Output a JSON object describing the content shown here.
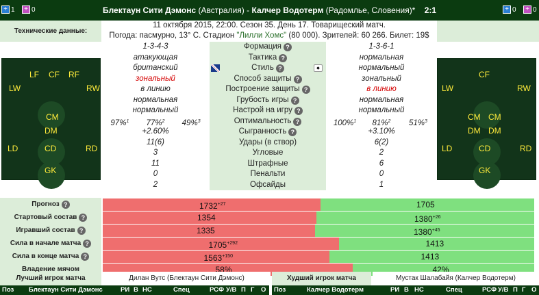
{
  "header": {
    "left_icons": [
      {
        "icon": "substitution-icon",
        "count": "1"
      },
      {
        "icon": "injury-icon",
        "count": "0"
      }
    ],
    "right_icons": [
      {
        "icon": "substitution-icon",
        "count": "0"
      },
      {
        "icon": "injury-icon",
        "count": "0"
      }
    ],
    "home_team": "Блектаун Сити Дэмонс",
    "home_country": "(Австралия)",
    "separator": " - ",
    "away_team": "Калчер Водотерм",
    "away_country": "(Радомлье, Словения)*",
    "score": "2:1"
  },
  "tech": {
    "label": "Технические данные:",
    "line1": "11 октября 2015, 22:00. Сезон 35. День 17. Товарищеский матч.",
    "line2_prefix": "Погода: пасмурно, 13° С. Стадион ",
    "stadium": "\"Лилли Хомс\"",
    "line2_suffix": " (80 000). Зрителей: 60 266. Билет: 19$"
  },
  "home_positions": [
    "LF",
    "CF",
    "RF",
    "LW",
    "RW",
    "CM",
    "DM",
    "LD",
    "CD",
    "RD",
    "GK"
  ],
  "away_positions": [
    "CF",
    "LW",
    "RW",
    "CM",
    "CM",
    "DM",
    "DM",
    "LD",
    "CD",
    "RD",
    "GK"
  ],
  "stats": [
    {
      "label": "Формация",
      "home": "1-3-4-3",
      "away": "1-3-6-1",
      "help": true
    },
    {
      "label": "Тактика",
      "home": "атакующая",
      "away": "нормальная",
      "help": true
    },
    {
      "label": "Стиль",
      "home": "британский",
      "away": "нормальный",
      "help": true
    },
    {
      "label": "Способ защиты",
      "home": "зональный",
      "away": "зональный",
      "help": true
    },
    {
      "label": "Построение защиты",
      "home": "в линию",
      "away": "в линию",
      "help": true
    },
    {
      "label": "Грубость игры",
      "home": "нормальная",
      "away": "нормальная",
      "help": true
    },
    {
      "label": "Настрой на игру",
      "home": "нормальный",
      "away": "нормальный",
      "help": true
    },
    {
      "label": "Оптимальность",
      "home": "",
      "away": "",
      "help": true
    },
    {
      "label": "Сыгранность",
      "home": "+2.60%",
      "away": "+3.10%",
      "help": true
    },
    {
      "label": "Удары (в створ)",
      "home": "11(6)",
      "away": "6(2)",
      "help": false
    },
    {
      "label": "Угловые",
      "home": "3",
      "away": "2",
      "help": false
    },
    {
      "label": "Штрафные",
      "home": "11",
      "away": "6",
      "help": false
    },
    {
      "label": "Пенальти",
      "home": "0",
      "away": "0",
      "help": false
    },
    {
      "label": "Офсайды",
      "home": "2",
      "away": "1",
      "help": false
    }
  ],
  "optimality": {
    "home": [
      {
        "v": "97%",
        "s": "1"
      },
      {
        "v": "77%",
        "s": "2"
      },
      {
        "v": "49%",
        "s": "3"
      }
    ],
    "away": [
      {
        "v": "100%",
        "s": "1"
      },
      {
        "v": "81%",
        "s": "2"
      },
      {
        "v": "51%",
        "s": "3"
      }
    ]
  },
  "bars": [
    {
      "label": "Прогноз",
      "home": "1732",
      "home_sup": "+27",
      "away": "1705",
      "away_sup": "",
      "home_fraction": 0.504
    },
    {
      "label": "Стартовый состав",
      "home": "1354",
      "home_sup": "",
      "away": "1380",
      "away_sup": "+26",
      "home_fraction": 0.496
    },
    {
      "label": "Игравший состав",
      "home": "1335",
      "home_sup": "",
      "away": "1380",
      "away_sup": "+45",
      "home_fraction": 0.492
    },
    {
      "label": "Сила в начале матча",
      "home": "1705",
      "home_sup": "+292",
      "away": "1413",
      "away_sup": "",
      "home_fraction": 0.547
    },
    {
      "label": "Сила в конце матча",
      "home": "1563",
      "home_sup": "+150",
      "away": "1413",
      "away_sup": "",
      "home_fraction": 0.525
    },
    {
      "label": "Владение мячом",
      "home": "58%",
      "home_sup": "",
      "away": "42%",
      "away_sup": "",
      "home_fraction": 0.58
    }
  ],
  "best": {
    "best_label": "Лучший игрок матча",
    "best_value": "Дилан Вутс (Блектаун Сити Дэмонс)",
    "worst_label": "Худший игрок матча",
    "worst_value": "Мустак Шалабайя (Калчер Водотерм)"
  },
  "table_header": {
    "left": [
      "Поз",
      "Блектаун Сити Дэмонс",
      "РИ",
      "В",
      "НС",
      "Спец",
      "РС",
      "Ф",
      "У/В",
      "П",
      "Г",
      "О"
    ],
    "right": [
      "Поз",
      "Калчер Водотерм",
      "РИ",
      "В",
      "НС",
      "Спец",
      "РС",
      "Ф",
      "У/В",
      "П",
      "Г",
      "О"
    ]
  }
}
